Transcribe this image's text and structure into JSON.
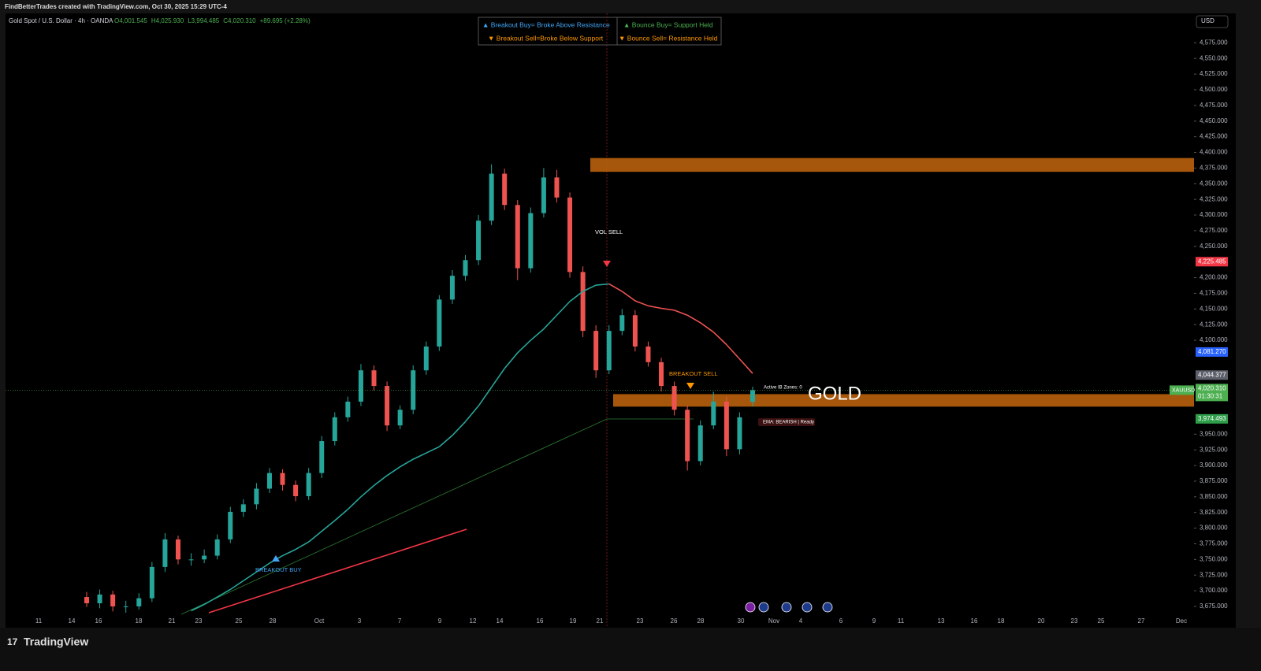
{
  "header": {
    "watermark": "FindBetterTrades created with TradingView.com, Oct 30, 2025 15:29 UTC-4",
    "symbol": "Gold Spot / U.S. Dollar · 4h · OANDA",
    "ohlc": [
      "O4,001.545",
      "H4,025.930",
      "L3,994.485",
      "C4,020.310",
      "+89.695 (+2.28%)"
    ]
  },
  "legend": {
    "breakout_buy": "▲ Breakout Buy= Broke Above Resistance",
    "bounce_buy": "▲ Bounce Buy= Support Held",
    "breakout_sell": "▼ Breakout Sell=Broke Below Support",
    "bounce_sell": "▼ Bounce Sell= Resistance Held"
  },
  "currency": "USD",
  "footer": {
    "brand": "TradingView"
  },
  "chart_data": {
    "type": "candlestick",
    "up_color": "#26a69a",
    "down_color": "#ef5350",
    "ylim": [
      3641,
      4622
    ],
    "yticks": [
      {
        "value": 4575,
        "label": "4,575.000"
      },
      {
        "value": 4550,
        "label": "4,550.000"
      },
      {
        "value": 4525,
        "label": "4,525.000"
      },
      {
        "value": 4500,
        "label": "4,500.000"
      },
      {
        "value": 4475,
        "label": "4,475.000"
      },
      {
        "value": 4450,
        "label": "4,450.000"
      },
      {
        "value": 4425,
        "label": "4,425.000"
      },
      {
        "value": 4400,
        "label": "4,400.000"
      },
      {
        "value": 4375,
        "label": "4,375.000"
      },
      {
        "value": 4350,
        "label": "4,350.000"
      },
      {
        "value": 4325,
        "label": "4,325.000"
      },
      {
        "value": 4300,
        "label": "4,300.000"
      },
      {
        "value": 4275,
        "label": "4,275.000"
      },
      {
        "value": 4250,
        "label": "4,250.000"
      },
      {
        "value": 4200,
        "label": "4,200.000"
      },
      {
        "value": 4175,
        "label": "4,175.000"
      },
      {
        "value": 4150,
        "label": "4,150.000"
      },
      {
        "value": 4125,
        "label": "4,125.000"
      },
      {
        "value": 4100,
        "label": "4,100.000"
      },
      {
        "value": 3950,
        "label": "3,950.000"
      },
      {
        "value": 3925,
        "label": "3,925.000"
      },
      {
        "value": 3900,
        "label": "3,900.000"
      },
      {
        "value": 3875,
        "label": "3,875.000"
      },
      {
        "value": 3850,
        "label": "3,850.000"
      },
      {
        "value": 3825,
        "label": "3,825.000"
      },
      {
        "value": 3800,
        "label": "3,800.000"
      },
      {
        "value": 3775,
        "label": "3,775.000"
      },
      {
        "value": 3750,
        "label": "3,750.000"
      },
      {
        "value": 3725,
        "label": "3,725.000"
      },
      {
        "value": 3700,
        "label": "3,700.000"
      },
      {
        "value": 3675,
        "label": "3,675.000"
      }
    ],
    "x_labels": [
      "11",
      "14",
      "16",
      "18",
      "21",
      "23",
      "25",
      "28",
      "Oct",
      "3",
      "7",
      "9",
      "12",
      "14",
      "16",
      "19",
      "21",
      "23",
      "26",
      "28",
      "30",
      "Nov",
      "4",
      "6",
      "9",
      "11",
      "13",
      "16",
      "18",
      "20",
      "23",
      "25",
      "27",
      "Dec"
    ],
    "ohlc": [
      [
        3690,
        3698,
        3674,
        3680
      ],
      [
        3680,
        3702,
        3672,
        3694
      ],
      [
        3694,
        3700,
        3667,
        3675
      ],
      [
        3675,
        3684,
        3665,
        3675
      ],
      [
        3675,
        3696,
        3670,
        3688
      ],
      [
        3688,
        3746,
        3682,
        3738
      ],
      [
        3738,
        3792,
        3730,
        3782
      ],
      [
        3782,
        3788,
        3742,
        3750
      ],
      [
        3750,
        3760,
        3740,
        3750
      ],
      [
        3750,
        3766,
        3744,
        3756
      ],
      [
        3756,
        3790,
        3750,
        3782
      ],
      [
        3782,
        3834,
        3776,
        3826
      ],
      [
        3826,
        3846,
        3818,
        3838
      ],
      [
        3838,
        3872,
        3830,
        3863
      ],
      [
        3863,
        3896,
        3856,
        3888
      ],
      [
        3888,
        3894,
        3860,
        3869
      ],
      [
        3869,
        3876,
        3843,
        3851
      ],
      [
        3851,
        3896,
        3845,
        3888
      ],
      [
        3888,
        3947,
        3880,
        3939
      ],
      [
        3939,
        3985,
        3932,
        3977
      ],
      [
        3977,
        4010,
        3970,
        4002
      ],
      [
        4002,
        4062,
        3995,
        4052
      ],
      [
        4052,
        4060,
        4020,
        4027
      ],
      [
        4027,
        4034,
        3955,
        3964
      ],
      [
        3964,
        3996,
        3958,
        3989
      ],
      [
        3989,
        4060,
        3982,
        4052
      ],
      [
        4052,
        4098,
        4045,
        4090
      ],
      [
        4090,
        4172,
        4083,
        4165
      ],
      [
        4165,
        4212,
        4158,
        4203
      ],
      [
        4203,
        4236,
        4195,
        4228
      ],
      [
        4228,
        4300,
        4220,
        4291
      ],
      [
        4291,
        4381,
        4284,
        4366
      ],
      [
        4366,
        4374,
        4308,
        4316
      ],
      [
        4316,
        4324,
        4196,
        4215
      ],
      [
        4215,
        4312,
        4208,
        4303
      ],
      [
        4303,
        4375,
        4296,
        4360
      ],
      [
        4360,
        4372,
        4320,
        4328
      ],
      [
        4328,
        4336,
        4200,
        4209
      ],
      [
        4209,
        4218,
        4105,
        4115
      ],
      [
        4115,
        4124,
        4040,
        4052
      ],
      [
        4052,
        4124,
        4046,
        4115
      ],
      [
        4115,
        4150,
        4108,
        4140
      ],
      [
        4140,
        4148,
        4082,
        4090
      ],
      [
        4090,
        4098,
        4058,
        4065
      ],
      [
        4065,
        4072,
        4018,
        4027
      ],
      [
        4027,
        4034,
        3980,
        3989
      ],
      [
        3989,
        3996,
        3892,
        3907
      ],
      [
        3907,
        3972,
        3900,
        3964
      ],
      [
        3964,
        4018,
        3958,
        4002
      ],
      [
        4002,
        4010,
        3915,
        3926
      ],
      [
        3926,
        3985,
        3918,
        3977
      ],
      [
        4001.545,
        4025.93,
        3994.485,
        4020.31
      ]
    ],
    "ema": {
      "rising_color": "#26a69a",
      "falling_color": "#ef5350",
      "values": [
        null,
        null,
        null,
        null,
        null,
        null,
        null,
        null,
        3668,
        3678,
        3690,
        3702,
        3716,
        3730,
        3744,
        3756,
        3766,
        3778,
        3795,
        3812,
        3830,
        3850,
        3868,
        3884,
        3898,
        3910,
        3920,
        3930,
        3948,
        3970,
        3995,
        4025,
        4055,
        4080,
        4100,
        4118,
        4140,
        4162,
        4178,
        4188,
        4190,
        4178,
        4163,
        4155,
        4151,
        4148,
        4140,
        4128,
        4113,
        4093,
        4070,
        4047
      ]
    },
    "zones": [
      {
        "low": 4369,
        "high": 4391,
        "color": "#b8610c"
      },
      {
        "low": 3994,
        "high": 4014,
        "color": "#b8610c"
      }
    ],
    "price_labels": [
      {
        "value": 4225.485,
        "label": "4,225.485",
        "color": "#f23645"
      },
      {
        "value": 4081.27,
        "label": "4,081.270",
        "color": "#2962ff"
      },
      {
        "value": 4044.377,
        "label": "4,044.377",
        "color": "#5d606b"
      },
      {
        "value": 3974.493,
        "label": "3,974.493",
        "color": "#2e9d4a"
      }
    ],
    "last_price": {
      "value": 4020.31,
      "label": "4,020.310",
      "symbol": "XAUUSD",
      "countdown": "01:30:31",
      "color": "#4caf50"
    },
    "annotations": {
      "vol_sell": "VOL SELL",
      "breakout_sell": "BREAKOUT SELL",
      "breakout_buy": "BREAKOUT BUY",
      "active_zones": "Active IB Zones: 0",
      "ema_status": "EMA: BEARISH | Ready",
      "watermark": "GOLD"
    }
  }
}
